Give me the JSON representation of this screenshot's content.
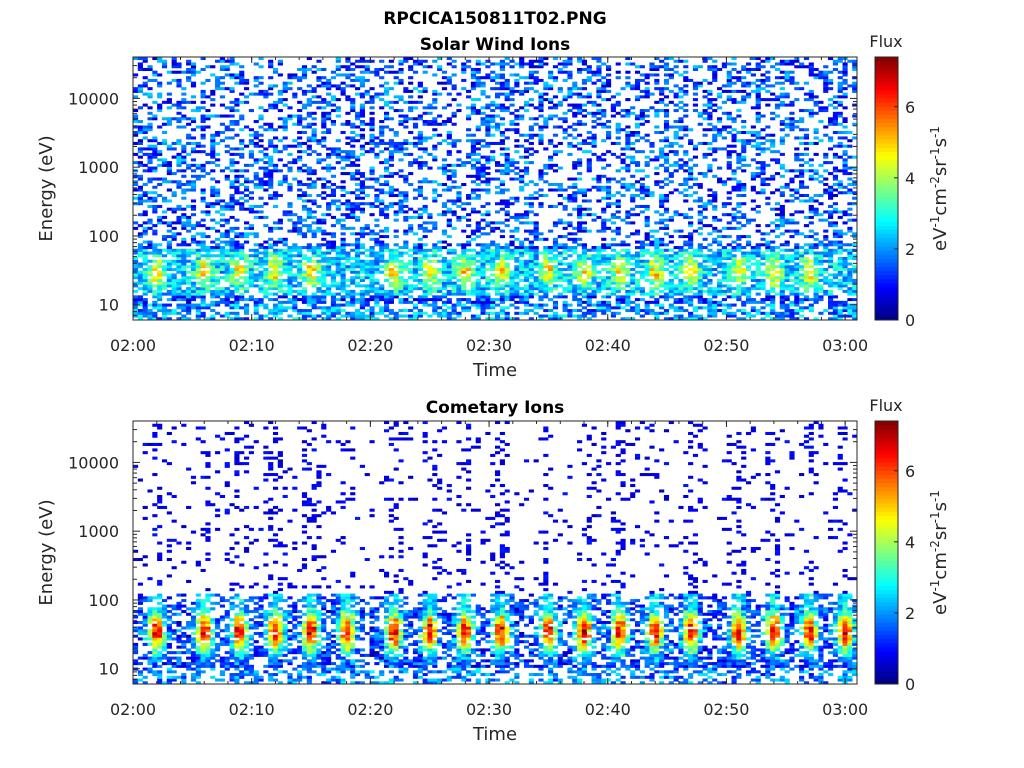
{
  "figure": {
    "title": "RPCICA150811T02.PNG",
    "colors": {
      "background": "#ffffff",
      "axis": "#262626",
      "title": "#000000"
    }
  },
  "chart_data": [
    {
      "type": "heatmap",
      "title": "Solar Wind Ions",
      "xlabel": "Time",
      "ylabel": "Energy (eV)",
      "xticks": [
        "02:00",
        "02:10",
        "02:20",
        "02:30",
        "02:40",
        "02:50",
        "03:00"
      ],
      "xlim": [
        "02:00",
        "03:01"
      ],
      "yscale": "log",
      "yticks": [
        10,
        100,
        1000,
        10000
      ],
      "ytick_labels": [
        "10",
        "100",
        "1000",
        "10000"
      ],
      "ylim": [
        6,
        40000
      ],
      "colorbar": {
        "label": "Flux",
        "units": "eV-1cm-2sr-1s-1",
        "ticks": [
          0,
          2,
          4,
          6
        ],
        "range": [
          0,
          7.4
        ],
        "colormap": "jet"
      },
      "peak_times": [
        "02:02",
        "02:06",
        "02:09",
        "02:12",
        "02:15",
        "02:22",
        "02:25",
        "02:28",
        "02:31",
        "02:35",
        "02:38",
        "02:41",
        "02:44",
        "02:47",
        "02:51",
        "02:54",
        "02:57"
      ],
      "peak_energy_eV": 30,
      "peak_flux": 5.0,
      "background_flux_range": [
        0.5,
        2.5
      ]
    },
    {
      "type": "heatmap",
      "title": "Cometary Ions",
      "xlabel": "Time",
      "ylabel": "Energy (eV)",
      "xticks": [
        "02:00",
        "02:10",
        "02:20",
        "02:30",
        "02:40",
        "02:50",
        "03:00"
      ],
      "xlim": [
        "02:00",
        "03:01"
      ],
      "yscale": "log",
      "yticks": [
        10,
        100,
        1000,
        10000
      ],
      "ytick_labels": [
        "10",
        "100",
        "1000",
        "10000"
      ],
      "ylim": [
        6,
        40000
      ],
      "colorbar": {
        "label": "Flux",
        "units": "eV-1cm-2sr-1s-1",
        "ticks": [
          0,
          2,
          4,
          6
        ],
        "range": [
          0,
          7.4
        ],
        "colormap": "jet"
      },
      "peak_times": [
        "02:02",
        "02:06",
        "02:09",
        "02:12",
        "02:15",
        "02:18",
        "02:22",
        "02:25",
        "02:28",
        "02:31",
        "02:35",
        "02:38",
        "02:41",
        "02:44",
        "02:47",
        "02:51",
        "02:54",
        "02:57",
        "03:00"
      ],
      "peak_energy_eV": 35,
      "peak_flux": 6.8,
      "background_flux_range": [
        0.3,
        1.5
      ]
    }
  ]
}
